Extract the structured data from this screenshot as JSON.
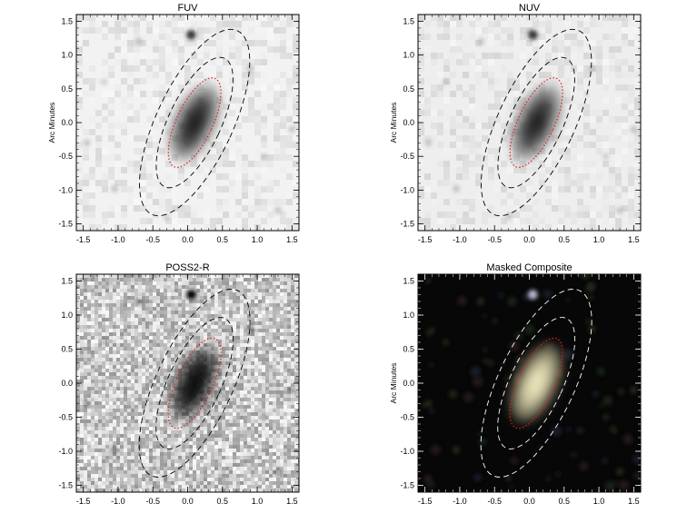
{
  "figure": {
    "panels": [
      {
        "id": "fuv",
        "title": "FUV",
        "ylabel": "Arc Minutes",
        "theme": "light-noise",
        "background": "#f2f2f2",
        "galaxy_color": "#2e2e2e",
        "ellipse_colors": {
          "outer": "#000000",
          "inner": "#000000",
          "core": "#e02020"
        }
      },
      {
        "id": "nuv",
        "title": "NUV",
        "ylabel": "Arc Minutes",
        "theme": "light-noise",
        "background": "#eeeeee",
        "galaxy_color": "#333333",
        "ellipse_colors": {
          "outer": "#000000",
          "inner": "#000000",
          "core": "#e02020"
        }
      },
      {
        "id": "poss2r",
        "title": "POSS2-R",
        "ylabel": "",
        "theme": "grainy",
        "background": "#c8c8c8",
        "galaxy_color": "#0a0a0a",
        "ellipse_colors": {
          "outer": "#000000",
          "inner": "#000000",
          "core": "#e02020"
        }
      },
      {
        "id": "composite",
        "title": "Masked Composite",
        "ylabel": "Arc Minutes",
        "theme": "dark",
        "background": "#070707",
        "galaxy_color": "#d8d2a8",
        "ellipse_colors": {
          "outer": "#ffffff",
          "inner": "#ffffff",
          "core": "#e02020"
        }
      }
    ],
    "axis": {
      "xlim": [
        -1.6,
        1.6
      ],
      "ylim": [
        -1.6,
        1.6
      ],
      "x_ticks": [
        "-1.5",
        "-1.0",
        "-0.5",
        "0.0",
        "0.5",
        "1.0",
        "1.5"
      ],
      "x_tick_values": [
        -1.5,
        -1.0,
        -0.5,
        0.0,
        0.5,
        1.0,
        1.5
      ],
      "y_ticks": [
        "1.5",
        "1.0",
        "0.5",
        "0.0",
        "-0.5",
        "-1.0",
        "-1.5"
      ],
      "y_tick_values": [
        1.5,
        1.0,
        0.5,
        0.0,
        -0.5,
        -1.0,
        -1.5
      ]
    },
    "ellipses": {
      "center": [
        0.1,
        0.0
      ],
      "position_angle_deg": 25,
      "outer": {
        "a": 1.5,
        "b": 0.55
      },
      "inner": {
        "a": 1.05,
        "b": 0.38
      },
      "core": {
        "a": 0.72,
        "b": 0.26
      }
    }
  }
}
